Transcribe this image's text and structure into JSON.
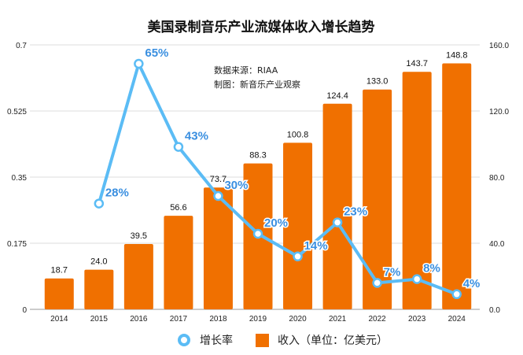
{
  "chart_data": {
    "type": "bar+line",
    "title": "美国录制音乐产业流媒体收入增长趋势",
    "annotations": [
      "数据来源：RIAA",
      "制图：新音乐产业观察"
    ],
    "categories": [
      "2014",
      "2015",
      "2016",
      "2017",
      "2018",
      "2019",
      "2020",
      "2021",
      "2022",
      "2023",
      "2024"
    ],
    "series": [
      {
        "name": "收入（单位：亿美元）",
        "type": "bar",
        "axis": "right",
        "color": "#f07000",
        "values": [
          18.7,
          24.0,
          39.5,
          56.6,
          73.7,
          88.3,
          100.8,
          124.4,
          133.0,
          143.7,
          148.8
        ],
        "labels": [
          "18.7",
          "24.0",
          "39.5",
          "56.6",
          "73.7",
          "88.3",
          "100.8",
          "124.4",
          "133.0",
          "143.7",
          "148.8"
        ]
      },
      {
        "name": "增长率",
        "type": "line",
        "axis": "left",
        "color": "#5bbcf5",
        "values": [
          null,
          0.28,
          0.65,
          0.43,
          0.3,
          0.2,
          0.14,
          0.23,
          0.07,
          0.08,
          0.04
        ],
        "labels": [
          null,
          "28%",
          "65%",
          "43%",
          "30%",
          "20%",
          "14%",
          "23%",
          "7%",
          "8%",
          "4%"
        ]
      }
    ],
    "y_left": {
      "ylim": [
        0,
        0.7
      ],
      "ticks": [
        "0",
        "0.175",
        "0.35",
        "0.525",
        "0.7"
      ]
    },
    "y_right": {
      "ylim": [
        0,
        160
      ],
      "ticks": [
        "0.0",
        "40.0",
        "80.0",
        "120.0",
        "160.0"
      ]
    },
    "grid": true,
    "legend": "bottom"
  }
}
